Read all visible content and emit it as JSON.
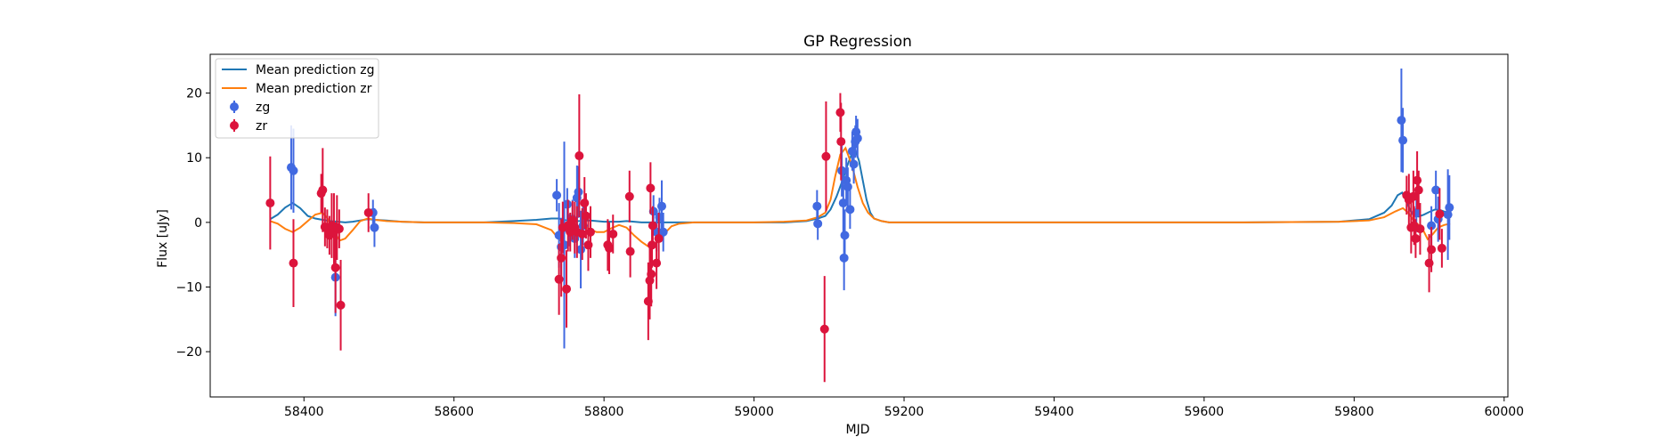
{
  "chart_data": {
    "type": "scatter",
    "title": "GP Regression",
    "xlabel": "MJD",
    "ylabel": "Flux [uJy]",
    "xlim": [
      58275,
      60005
    ],
    "ylim": [
      -27,
      26
    ],
    "xticks": [
      58400,
      58600,
      58800,
      59000,
      59200,
      59400,
      59600,
      59800,
      60000
    ],
    "yticks": [
      -20,
      -10,
      0,
      10,
      20
    ],
    "grid": false,
    "legend_position": "top-left",
    "colors": {
      "mean_zg": "#1f77b4",
      "mean_zr": "#ff7f0e",
      "zg": "#4169e1",
      "zr": "#dc143c"
    },
    "legend": [
      {
        "label": "Mean prediction zg",
        "kind": "line",
        "color": "#1f77b4"
      },
      {
        "label": "Mean prediction zr",
        "kind": "line",
        "color": "#ff7f0e"
      },
      {
        "label": "zg",
        "kind": "errorbar",
        "color": "#4169e1"
      },
      {
        "label": "zr",
        "kind": "errorbar",
        "color": "#dc143c"
      }
    ],
    "lines": [
      {
        "name": "Mean prediction zg",
        "color": "#1f77b4",
        "x": [
          58355,
          58365,
          58375,
          58385,
          58395,
          58405,
          58415,
          58425,
          58435,
          58445,
          58455,
          58465,
          58475,
          58485,
          58495,
          58510,
          58530,
          58560,
          58600,
          58640,
          58680,
          58710,
          58730,
          58740,
          58750,
          58760,
          58770,
          58780,
          58790,
          58800,
          58810,
          58820,
          58830,
          58840,
          58850,
          58860,
          58870,
          58880,
          58890,
          58900,
          58920,
          58960,
          59000,
          59040,
          59070,
          59085,
          59095,
          59102,
          59110,
          59118,
          59125,
          59130,
          59135,
          59140,
          59145,
          59150,
          59155,
          59160,
          59170,
          59180,
          59200,
          59250,
          59350,
          59500,
          59650,
          59780,
          59820,
          59840,
          59850,
          59858,
          59864,
          59870,
          59875,
          59880,
          59886,
          59893,
          59900,
          59908,
          59915,
          59922,
          59928
        ],
        "y": [
          0.5,
          1.2,
          2.3,
          3.0,
          2.2,
          1.0,
          0.6,
          0.4,
          0.2,
          0.1,
          0.0,
          0.1,
          0.3,
          0.5,
          0.4,
          0.3,
          0.1,
          0.0,
          0.0,
          0.0,
          0.2,
          0.4,
          0.6,
          0.6,
          0.3,
          0.2,
          0.2,
          0.3,
          0.2,
          0.1,
          0.1,
          0.1,
          0.2,
          0.1,
          0.0,
          0.0,
          0.0,
          0.0,
          0.0,
          0.0,
          0.0,
          0.0,
          0.0,
          0.0,
          0.2,
          0.6,
          1.0,
          2.0,
          4.0,
          6.5,
          9.0,
          10.5,
          11.2,
          9.5,
          6.5,
          3.5,
          1.5,
          0.6,
          0.2,
          0.0,
          0.0,
          0.0,
          0.0,
          0.0,
          0.0,
          0.1,
          0.5,
          1.5,
          2.6,
          4.2,
          4.6,
          3.2,
          1.8,
          1.0,
          0.9,
          1.2,
          1.6,
          2.0,
          1.9,
          1.6,
          1.3
        ]
      },
      {
        "name": "Mean prediction zr",
        "color": "#ff7f0e",
        "x": [
          58355,
          58365,
          58375,
          58385,
          58395,
          58405,
          58415,
          58425,
          58432,
          58440,
          58448,
          58455,
          58465,
          58475,
          58485,
          58495,
          58510,
          58530,
          58560,
          58600,
          58640,
          58680,
          58710,
          58730,
          58740,
          58748,
          58755,
          58762,
          58770,
          58780,
          58790,
          58800,
          58810,
          58820,
          58830,
          58840,
          58850,
          58860,
          58870,
          58880,
          58890,
          58900,
          58920,
          58960,
          59000,
          59040,
          59070,
          59085,
          59095,
          59102,
          59108,
          59115,
          59122,
          59130,
          59138,
          59145,
          59152,
          59160,
          59170,
          59180,
          59200,
          59250,
          59350,
          59500,
          59650,
          59780,
          59820,
          59840,
          59855,
          59865,
          59872,
          59878,
          59885,
          59892,
          59898,
          59905,
          59912,
          59920,
          59928
        ],
        "y": [
          0.2,
          -0.2,
          -1.0,
          -1.5,
          -0.8,
          0.2,
          1.2,
          1.5,
          0.5,
          -1.5,
          -2.8,
          -2.5,
          -1.2,
          0.2,
          0.6,
          0.4,
          0.2,
          0.1,
          0.0,
          0.0,
          0.0,
          -0.1,
          -0.3,
          -1.2,
          -2.6,
          -3.5,
          -2.5,
          -1.0,
          -0.5,
          -1.0,
          -1.5,
          -1.5,
          -0.9,
          -0.4,
          -0.8,
          -2.0,
          -3.0,
          -3.8,
          -3.2,
          -1.8,
          -0.6,
          -0.2,
          0.0,
          0.0,
          0.0,
          0.1,
          0.3,
          0.8,
          1.5,
          3.5,
          7.0,
          10.5,
          11.5,
          9.0,
          5.5,
          3.0,
          1.5,
          0.6,
          0.2,
          0.0,
          0.0,
          0.0,
          0.0,
          0.0,
          0.0,
          0.1,
          0.3,
          0.8,
          1.7,
          2.2,
          1.5,
          0.5,
          -0.3,
          -1.2,
          -2.6,
          -1.8,
          -0.8,
          -0.4,
          -0.2
        ]
      }
    ],
    "series": [
      {
        "name": "zg",
        "color": "#4169e1",
        "points": [
          {
            "x": 58383,
            "y": 8.5,
            "err": 6.5
          },
          {
            "x": 58386,
            "y": 8.0,
            "err": 6.5
          },
          {
            "x": 58442,
            "y": -8.5,
            "err": 6.0
          },
          {
            "x": 58492,
            "y": 1.5,
            "err": 2.0
          },
          {
            "x": 58494,
            "y": -0.8,
            "err": 3.0
          },
          {
            "x": 58737,
            "y": 4.2,
            "err": 2.5
          },
          {
            "x": 58740,
            "y": -2.0,
            "err": 5.0
          },
          {
            "x": 58743,
            "y": -3.8,
            "err": 4.5
          },
          {
            "x": 58747,
            "y": -3.5,
            "err": 16.0
          },
          {
            "x": 58751,
            "y": 2.8,
            "err": 2.5
          },
          {
            "x": 58754,
            "y": -1.2,
            "err": 2.5
          },
          {
            "x": 58758,
            "y": 0.5,
            "err": 3.0
          },
          {
            "x": 58761,
            "y": -2.5,
            "err": 3.0
          },
          {
            "x": 58764,
            "y": 3.8,
            "err": 5.0
          },
          {
            "x": 58766,
            "y": 4.7,
            "err": 4.0
          },
          {
            "x": 58769,
            "y": -4.2,
            "err": 6.0
          },
          {
            "x": 58772,
            "y": -0.5,
            "err": 3.0
          },
          {
            "x": 58866,
            "y": 1.7,
            "err": 2.5
          },
          {
            "x": 58870,
            "y": -1.5,
            "err": 3.0
          },
          {
            "x": 58874,
            "y": 0.8,
            "err": 3.0
          },
          {
            "x": 58877,
            "y": 2.5,
            "err": 4.0
          },
          {
            "x": 58879,
            "y": -1.5,
            "err": 3.0
          },
          {
            "x": 59084,
            "y": 2.5,
            "err": 2.5
          },
          {
            "x": 59085,
            "y": -0.2,
            "err": 2.5
          },
          {
            "x": 59117,
            "y": 8.0,
            "err": 4.0
          },
          {
            "x": 59119,
            "y": 3.0,
            "err": 4.5
          },
          {
            "x": 59120,
            "y": -5.5,
            "err": 5.0
          },
          {
            "x": 59121,
            "y": -2.0,
            "err": 4.0
          },
          {
            "x": 59123,
            "y": 6.5,
            "err": 3.5
          },
          {
            "x": 59125,
            "y": 5.5,
            "err": 3.0
          },
          {
            "x": 59128,
            "y": 2.0,
            "err": 3.0
          },
          {
            "x": 59131,
            "y": 11.0,
            "err": 3.0
          },
          {
            "x": 59133,
            "y": 9.0,
            "err": 3.0
          },
          {
            "x": 59135,
            "y": 12.5,
            "err": 2.5
          },
          {
            "x": 59136,
            "y": 14.0,
            "err": 2.5
          },
          {
            "x": 59138,
            "y": 13.0,
            "err": 3.0
          },
          {
            "x": 59863,
            "y": 15.8,
            "err": 8.0
          },
          {
            "x": 59865,
            "y": 12.7,
            "err": 5.0
          },
          {
            "x": 59883,
            "y": 1.5,
            "err": 3.0
          },
          {
            "x": 59903,
            "y": -0.5,
            "err": 3.0
          },
          {
            "x": 59909,
            "y": 5.0,
            "err": 3.0
          },
          {
            "x": 59912,
            "y": 0.5,
            "err": 3.5
          },
          {
            "x": 59925,
            "y": 1.2,
            "err": 7.0
          },
          {
            "x": 59927,
            "y": 2.3,
            "err": 5.0
          }
        ]
      },
      {
        "name": "zr",
        "color": "#dc143c",
        "points": [
          {
            "x": 58355,
            "y": 3.0,
            "err": 7.2
          },
          {
            "x": 58386,
            "y": -6.3,
            "err": 6.8
          },
          {
            "x": 58423,
            "y": 4.5,
            "err": 3.0
          },
          {
            "x": 58425,
            "y": 5.0,
            "err": 6.5
          },
          {
            "x": 58428,
            "y": -0.7,
            "err": 3.0
          },
          {
            "x": 58431,
            "y": -1.0,
            "err": 3.0
          },
          {
            "x": 58434,
            "y": -2.0,
            "err": 3.0
          },
          {
            "x": 58437,
            "y": -0.5,
            "err": 5.0
          },
          {
            "x": 58440,
            "y": -1.5,
            "err": 6.0
          },
          {
            "x": 58442,
            "y": -7.0,
            "err": 7.0
          },
          {
            "x": 58444,
            "y": -0.8,
            "err": 5.0
          },
          {
            "x": 58447,
            "y": -1.0,
            "err": 3.0
          },
          {
            "x": 58449,
            "y": -12.8,
            "err": 7.0
          },
          {
            "x": 58486,
            "y": 1.5,
            "err": 3.0
          },
          {
            "x": 58740,
            "y": -8.8,
            "err": 5.5
          },
          {
            "x": 58743,
            "y": -5.5,
            "err": 6.0
          },
          {
            "x": 58745,
            "y": -0.8,
            "err": 4.0
          },
          {
            "x": 58750,
            "y": -10.3,
            "err": 6.0
          },
          {
            "x": 58752,
            "y": -0.5,
            "err": 4.0
          },
          {
            "x": 58755,
            "y": -1.5,
            "err": 3.0
          },
          {
            "x": 58758,
            "y": 0.3,
            "err": 3.0
          },
          {
            "x": 58761,
            "y": -0.8,
            "err": 4.0
          },
          {
            "x": 58764,
            "y": -1.5,
            "err": 4.0
          },
          {
            "x": 58767,
            "y": 10.3,
            "err": 9.5
          },
          {
            "x": 58771,
            "y": -1.8,
            "err": 4.0
          },
          {
            "x": 58774,
            "y": 3.0,
            "err": 4.0
          },
          {
            "x": 58776,
            "y": 1.0,
            "err": 3.5
          },
          {
            "x": 58779,
            "y": -3.5,
            "err": 4.0
          },
          {
            "x": 58782,
            "y": -1.5,
            "err": 4.0
          },
          {
            "x": 58805,
            "y": -3.5,
            "err": 4.0
          },
          {
            "x": 58807,
            "y": -4.0,
            "err": 4.0
          },
          {
            "x": 58812,
            "y": -1.8,
            "err": 3.0
          },
          {
            "x": 58834,
            "y": 4.0,
            "err": 4.0
          },
          {
            "x": 58835,
            "y": -4.5,
            "err": 4.0
          },
          {
            "x": 58859,
            "y": -12.2,
            "err": 6.0
          },
          {
            "x": 58861,
            "y": -9.0,
            "err": 6.0
          },
          {
            "x": 58863,
            "y": -8.0,
            "err": 5.0
          },
          {
            "x": 58862,
            "y": 5.3,
            "err": 4.0
          },
          {
            "x": 58865,
            "y": -0.5,
            "err": 3.0
          },
          {
            "x": 58864,
            "y": -3.5,
            "err": 3.5
          },
          {
            "x": 58870,
            "y": -6.3,
            "err": 4.0
          },
          {
            "x": 58873,
            "y": -2.5,
            "err": 4.0
          },
          {
            "x": 59094,
            "y": -16.5,
            "err": 8.2
          },
          {
            "x": 59096,
            "y": 10.2,
            "err": 8.5
          },
          {
            "x": 59115,
            "y": 17.0,
            "err": 3.0
          },
          {
            "x": 59116,
            "y": 12.5,
            "err": 6.0
          },
          {
            "x": 59870,
            "y": 4.2,
            "err": 3.0
          },
          {
            "x": 59873,
            "y": 3.5,
            "err": 4.0
          },
          {
            "x": 59876,
            "y": -0.8,
            "err": 4.0
          },
          {
            "x": 59879,
            "y": 4.0,
            "err": 4.0
          },
          {
            "x": 59880,
            "y": -0.5,
            "err": 3.0
          },
          {
            "x": 59882,
            "y": -2.5,
            "err": 3.0
          },
          {
            "x": 59884,
            "y": 6.5,
            "err": 4.5
          },
          {
            "x": 59886,
            "y": 5.0,
            "err": 3.0
          },
          {
            "x": 59888,
            "y": -1.0,
            "err": 4.0
          },
          {
            "x": 59900,
            "y": -6.3,
            "err": 4.5
          },
          {
            "x": 59903,
            "y": -4.2,
            "err": 3.5
          },
          {
            "x": 59914,
            "y": 1.3,
            "err": 4.0
          },
          {
            "x": 59917,
            "y": -4.0,
            "err": 3.0
          }
        ]
      }
    ]
  }
}
